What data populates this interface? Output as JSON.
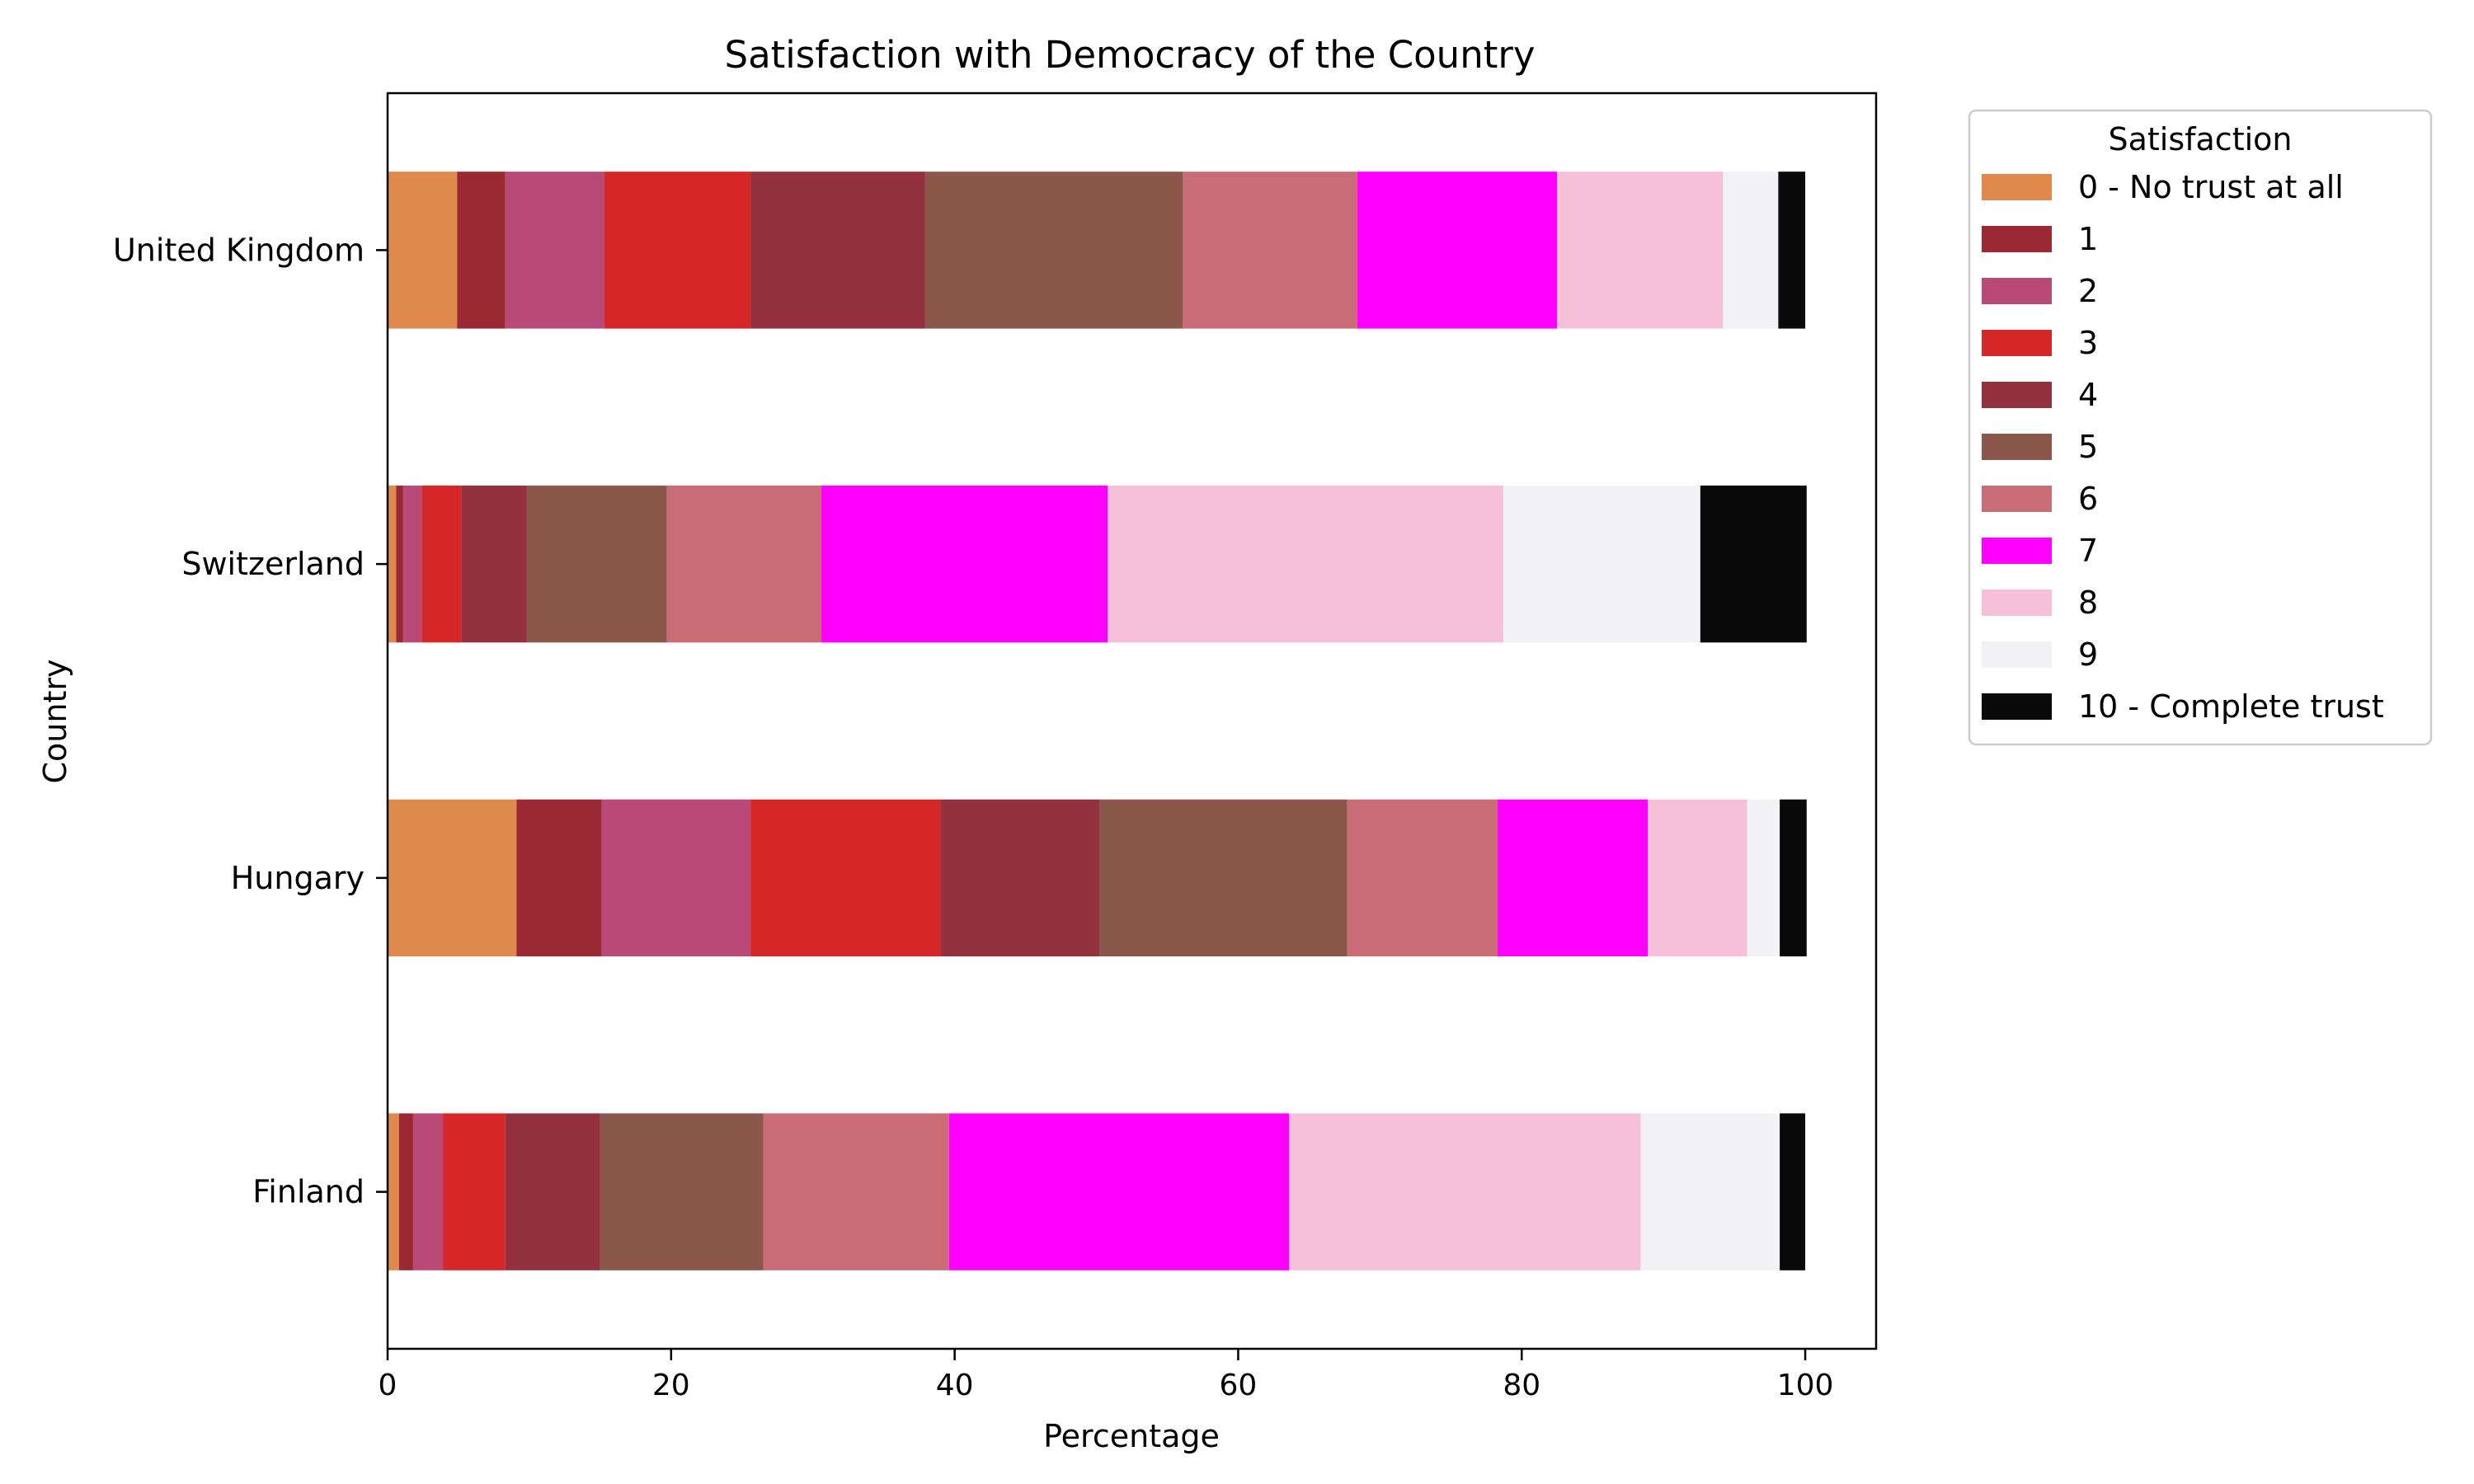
{
  "chart_data": {
    "type": "bar",
    "orientation": "horizontal",
    "stacked": true,
    "title": "Satisfaction with Democracy of the Country",
    "xlabel": "Percentage",
    "ylabel": "Country",
    "xlim": [
      0,
      105
    ],
    "xticks": [
      0,
      20,
      40,
      60,
      80,
      100
    ],
    "grid": false,
    "legend_position": "outside-top-right",
    "legend_title": "Satisfaction",
    "categories": [
      "Finland",
      "Hungary",
      "Switzerland",
      "United Kingdom"
    ],
    "series": [
      {
        "name": "0 - No trust at all",
        "color": "#e0894d",
        "values": [
          0.8,
          9.1,
          0.6,
          4.9
        ]
      },
      {
        "name": "1",
        "color": "#9b2933",
        "values": [
          1.0,
          6.0,
          0.5,
          3.4
        ]
      },
      {
        "name": "2",
        "color": "#b94a78",
        "values": [
          2.1,
          10.5,
          1.3,
          7.0
        ]
      },
      {
        "name": "3",
        "color": "#d62728",
        "values": [
          4.4,
          13.4,
          2.8,
          10.3
        ]
      },
      {
        "name": "4",
        "color": "#93313f",
        "values": [
          6.7,
          11.2,
          4.6,
          12.3
        ]
      },
      {
        "name": "5",
        "color": "#8b574a",
        "values": [
          11.5,
          17.5,
          9.9,
          18.2
        ]
      },
      {
        "name": "6",
        "color": "#c96c76",
        "values": [
          13.1,
          10.6,
          10.9,
          12.3
        ]
      },
      {
        "name": "7",
        "color": "#ff00ff",
        "values": [
          24.0,
          10.6,
          20.2,
          14.1
        ]
      },
      {
        "name": "8",
        "color": "#f7c0d9",
        "values": [
          24.8,
          7.0,
          27.9,
          11.7
        ]
      },
      {
        "name": "9",
        "color": "#f2f2f4",
        "values": [
          9.8,
          2.3,
          13.9,
          3.9
        ]
      },
      {
        "name": "10 - Complete trust",
        "color": "#0a0a0a",
        "values": [
          1.8,
          1.9,
          7.5,
          1.9
        ]
      }
    ]
  }
}
